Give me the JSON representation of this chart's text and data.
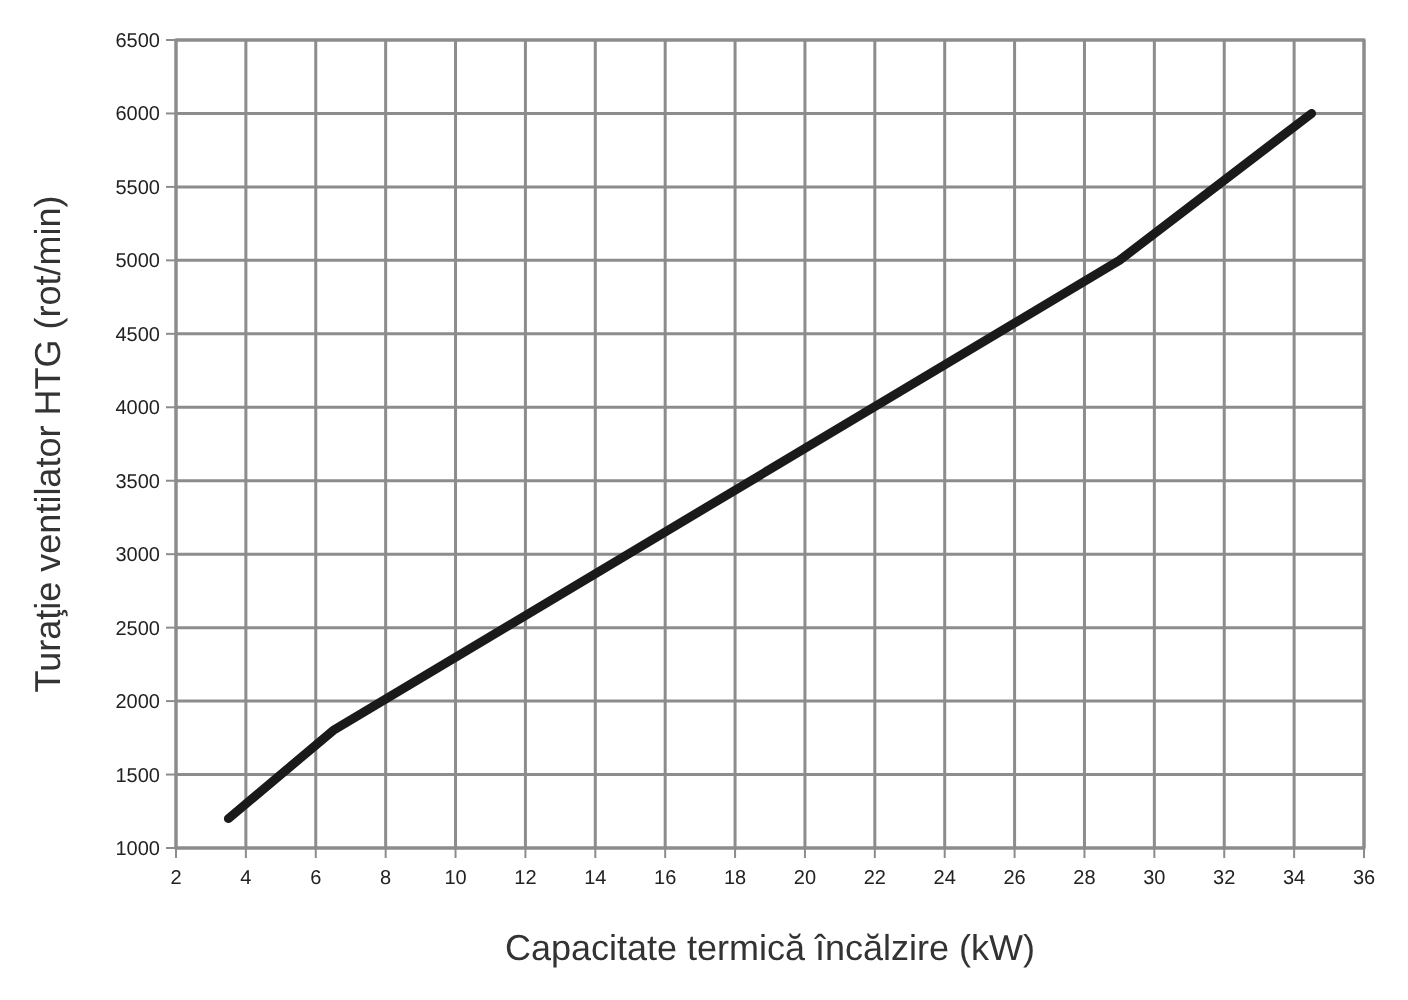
{
  "chart_data": {
    "type": "line",
    "xlabel": "Capacitate termică încălzire (kW)",
    "ylabel": "Turaţie ventilator HTG (rot/min)",
    "series": [
      {
        "color": "#1a1a1a",
        "x": [
          3.5,
          6.5,
          29,
          34.5
        ],
        "values": [
          1200,
          1800,
          5000,
          6000
        ]
      }
    ],
    "xlim": [
      2,
      36
    ],
    "xticks": [
      2,
      4,
      6,
      8,
      10,
      12,
      14,
      16,
      18,
      20,
      22,
      24,
      26,
      28,
      30,
      32,
      34,
      36
    ],
    "ylim": [
      1000,
      6500
    ],
    "yticks": [
      1000,
      1500,
      2000,
      2500,
      3000,
      3500,
      4000,
      4500,
      5000,
      5500,
      6000,
      6500
    ],
    "grid": true,
    "marker": "none",
    "line_style": "solid"
  }
}
